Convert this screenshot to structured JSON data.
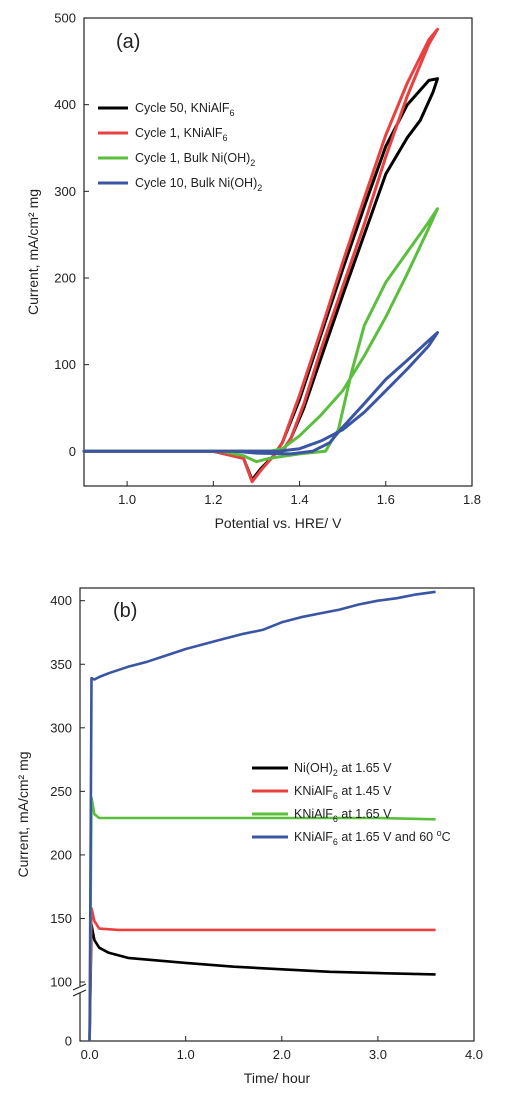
{
  "charts": [
    {
      "panel_label": "(a)",
      "xlabel": "Potential vs. HRE/ V",
      "ylabel": "Current, mA/cm² mg",
      "xticks": [
        "1.0",
        "1.2",
        "1.4",
        "1.6",
        "1.8"
      ],
      "yticks": [
        "0",
        "100",
        "200",
        "300",
        "400",
        "500"
      ]
    },
    {
      "panel_label": "(b)",
      "xlabel": "Time/ hour",
      "ylabel": "Current, mA/cm² mg",
      "xticks": [
        "0.0",
        "1.0",
        "2.0",
        "3.0",
        "4.0"
      ],
      "yticks": [
        "0",
        "100",
        "150",
        "200",
        "250",
        "300",
        "350",
        "400"
      ]
    }
  ],
  "chart_data": [
    {
      "type": "line",
      "title": "",
      "xlabel": "Potential vs. HRE/ V",
      "ylabel": "Current, mA/cm2 mg",
      "xlim": [
        0.9,
        1.8
      ],
      "ylim": [
        -40,
        500
      ],
      "grid": false,
      "legend_position": "upper-left",
      "series": [
        {
          "name": "Cycle 50, KNiAlF6",
          "color": "#000000",
          "forward": [
            [
              0.9,
              0
            ],
            [
              1.2,
              0
            ],
            [
              1.27,
              -8
            ],
            [
              1.29,
              -33
            ],
            [
              1.31,
              -20
            ],
            [
              1.34,
              -5
            ],
            [
              1.36,
              10
            ],
            [
              1.4,
              60
            ],
            [
              1.45,
              135
            ],
            [
              1.5,
              210
            ],
            [
              1.55,
              282
            ],
            [
              1.6,
              352
            ],
            [
              1.65,
              400
            ],
            [
              1.7,
              428
            ],
            [
              1.72,
              430
            ]
          ],
          "reverse": [
            [
              1.72,
              430
            ],
            [
              1.71,
              415
            ],
            [
              1.68,
              382
            ],
            [
              1.65,
              362
            ],
            [
              1.6,
              320
            ],
            [
              1.55,
              250
            ],
            [
              1.5,
              180
            ],
            [
              1.45,
              108
            ],
            [
              1.41,
              50
            ],
            [
              1.38,
              15
            ],
            [
              1.36,
              0
            ],
            [
              1.3,
              0
            ],
            [
              0.9,
              0
            ]
          ]
        },
        {
          "name": "Cycle 1, KNiAlF6",
          "color": "#e8413f",
          "forward": [
            [
              0.9,
              0
            ],
            [
              1.2,
              0
            ],
            [
              1.27,
              -8
            ],
            [
              1.29,
              -35
            ],
            [
              1.31,
              -22
            ],
            [
              1.34,
              -5
            ],
            [
              1.36,
              10
            ],
            [
              1.4,
              65
            ],
            [
              1.45,
              140
            ],
            [
              1.5,
              218
            ],
            [
              1.55,
              292
            ],
            [
              1.6,
              365
            ],
            [
              1.65,
              425
            ],
            [
              1.7,
              475
            ],
            [
              1.72,
              487
            ]
          ],
          "reverse": [
            [
              1.72,
              487
            ],
            [
              1.7,
              470
            ],
            [
              1.65,
              410
            ],
            [
              1.6,
              340
            ],
            [
              1.55,
              262
            ],
            [
              1.5,
              190
            ],
            [
              1.45,
              118
            ],
            [
              1.41,
              55
            ],
            [
              1.38,
              15
            ],
            [
              1.36,
              0
            ],
            [
              1.3,
              0
            ],
            [
              0.9,
              0
            ]
          ]
        },
        {
          "name": "Cycle 1, Bulk Ni(OH)2",
          "color": "#5bbf3e",
          "forward": [
            [
              0.9,
              0
            ],
            [
              1.22,
              0
            ],
            [
              1.27,
              -5
            ],
            [
              1.3,
              -12
            ],
            [
              1.33,
              -8
            ],
            [
              1.4,
              -3
            ],
            [
              1.46,
              0
            ],
            [
              1.49,
              25
            ],
            [
              1.52,
              90
            ],
            [
              1.55,
              145
            ],
            [
              1.6,
              195
            ],
            [
              1.65,
              230
            ],
            [
              1.7,
              265
            ],
            [
              1.72,
              280
            ]
          ],
          "reverse": [
            [
              1.72,
              280
            ],
            [
              1.7,
              258
            ],
            [
              1.65,
              205
            ],
            [
              1.6,
              155
            ],
            [
              1.55,
              110
            ],
            [
              1.5,
              70
            ],
            [
              1.45,
              42
            ],
            [
              1.4,
              18
            ],
            [
              1.36,
              3
            ],
            [
              1.33,
              0
            ],
            [
              0.9,
              0
            ]
          ]
        },
        {
          "name": "Cycle 10, Bulk Ni(OH)2",
          "color": "#3a55a4",
          "forward": [
            [
              0.9,
              0
            ],
            [
              1.25,
              0
            ],
            [
              1.3,
              -2
            ],
            [
              1.38,
              -3
            ],
            [
              1.43,
              0
            ],
            [
              1.47,
              10
            ],
            [
              1.5,
              28
            ],
            [
              1.55,
              55
            ],
            [
              1.6,
              83
            ],
            [
              1.65,
              105
            ],
            [
              1.7,
              128
            ],
            [
              1.72,
              137
            ]
          ],
          "reverse": [
            [
              1.72,
              137
            ],
            [
              1.7,
              122
            ],
            [
              1.65,
              95
            ],
            [
              1.6,
              70
            ],
            [
              1.55,
              45
            ],
            [
              1.5,
              25
            ],
            [
              1.45,
              12
            ],
            [
              1.4,
              3
            ],
            [
              1.35,
              0
            ],
            [
              0.9,
              0
            ]
          ]
        }
      ]
    },
    {
      "type": "line",
      "title": "",
      "xlabel": "Time/ hour",
      "ylabel": "Current, mA/cm2 mg",
      "xlim": [
        -0.1,
        4.0
      ],
      "ylim": [
        0,
        410
      ],
      "y_axis_break": [
        0,
        100
      ],
      "grid": false,
      "legend_position": "center-right",
      "series": [
        {
          "name": "Ni(OH)2 at 1.65 V",
          "color": "#000000",
          "x": [
            0,
            0.02,
            0.05,
            0.1,
            0.2,
            0.4,
            0.7,
            1.0,
            1.5,
            2.0,
            2.5,
            3.0,
            3.6
          ],
          "y": [
            0,
            145,
            133,
            127,
            123,
            119,
            117,
            115,
            112,
            110,
            108,
            107,
            106
          ]
        },
        {
          "name": "KNiAlF6 at 1.45 V",
          "color": "#e8413f",
          "x": [
            0,
            0.02,
            0.05,
            0.1,
            0.3,
            0.6,
            1.0,
            1.5,
            2.0,
            2.5,
            3.0,
            3.6
          ],
          "y": [
            0,
            158,
            148,
            142,
            141,
            141,
            141,
            141,
            141,
            141,
            141,
            141
          ]
        },
        {
          "name": "KNiAlF6 at 1.65 V",
          "color": "#5bbf3e",
          "x": [
            0,
            0.02,
            0.05,
            0.1,
            0.3,
            0.6,
            1.0,
            1.5,
            2.0,
            2.5,
            3.0,
            3.6
          ],
          "y": [
            0,
            245,
            232,
            229,
            229,
            229,
            229,
            229,
            229,
            229,
            229,
            228
          ]
        },
        {
          "name": "KNiAlF6 at 1.65 V and 60 oC",
          "color": "#3a55a4",
          "x": [
            0,
            0.02,
            0.05,
            0.1,
            0.2,
            0.4,
            0.6,
            0.8,
            1.0,
            1.2,
            1.4,
            1.6,
            1.8,
            2.0,
            2.2,
            2.4,
            2.6,
            2.8,
            3.0,
            3.2,
            3.4,
            3.6
          ],
          "y": [
            0,
            339,
            338,
            340,
            343,
            348,
            352,
            357,
            362,
            366,
            370,
            374,
            377,
            383,
            387,
            390,
            393,
            397,
            400,
            402,
            405,
            407
          ]
        }
      ]
    }
  ],
  "legends": [
    [
      {
        "pre": "Cycle 50, KNiAlF",
        "sub": "6",
        "post": "",
        "sup": ""
      },
      {
        "pre": "Cycle 1, KNiAlF",
        "sub": "6",
        "post": "",
        "sup": ""
      },
      {
        "pre": "Cycle 1, Bulk Ni(OH)",
        "sub": "2",
        "post": "",
        "sup": ""
      },
      {
        "pre": "Cycle 10, Bulk Ni(OH)",
        "sub": "2",
        "post": "",
        "sup": ""
      }
    ],
    [
      {
        "pre": "Ni(OH)",
        "sub": "2",
        "post": " at 1.65 V",
        "sup": ""
      },
      {
        "pre": "KNiAlF",
        "sub": "6",
        "post": " at 1.45 V",
        "sup": ""
      },
      {
        "pre": "KNiAlF",
        "sub": "6",
        "post": " at 1.65 V",
        "sup": ""
      },
      {
        "pre": "KNiAlF",
        "sub": "6",
        "post": " at 1.65 V and 60 ",
        "sup": "o",
        "tail": "C"
      }
    ]
  ]
}
